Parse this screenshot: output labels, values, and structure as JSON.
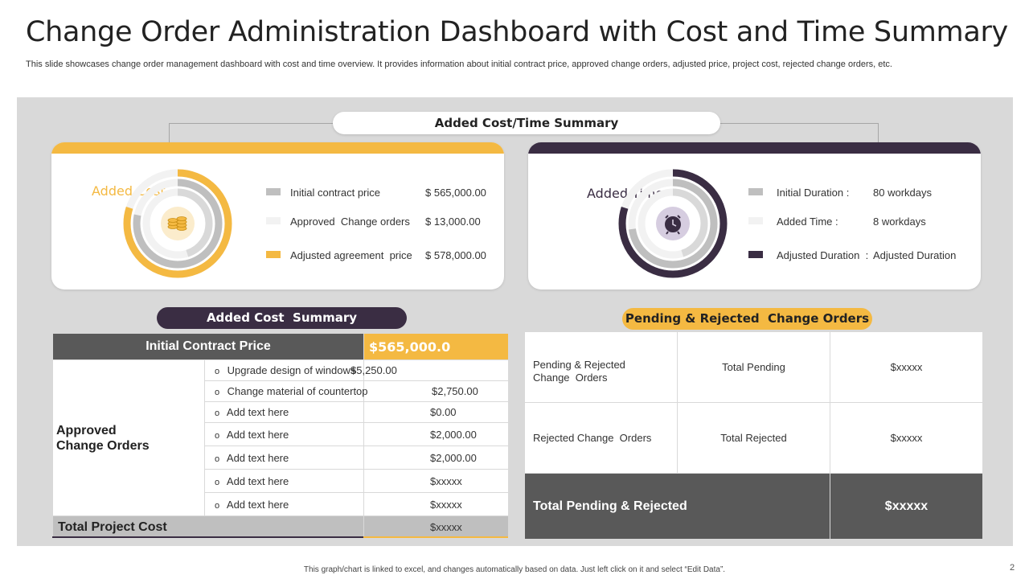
{
  "page": {
    "title": "Change Order Administration Dashboard with Cost and Time Summary",
    "subtitle": "This slide showcases change order management dashboard with cost and time overview. It provides information about initial contract price, approved change orders, adjusted price, project cost, rejected change orders, etc.",
    "footer": "This graph/chart is linked to excel, and changes automatically based on data. Just left click on it and select “Edit Data”.",
    "page_number": "2"
  },
  "colors": {
    "gold": "#f4b942",
    "dark_purple": "#3a2d43",
    "gray": "#bfbfbf",
    "light": "#f2f2f2",
    "lavender": "#d6cde0",
    "dark_gray": "#595959"
  },
  "summary": {
    "header": "Added Cost/Time Summary",
    "cost_card": {
      "heading": "Added Cost",
      "icon": "coins-icon",
      "legend": [
        {
          "label": "Initial contract price",
          "value": "$ 565,000.00",
          "color": "#bfbfbf"
        },
        {
          "label": "Approved  Change orders",
          "value": "$ 13,000.00",
          "color": "#f2f2f2"
        },
        {
          "label": "Adjusted agreement  price",
          "value": "$ 578,000.00",
          "color": "#f4b942"
        }
      ],
      "chart_data": {
        "type": "donut",
        "series": [
          {
            "name": "Initial contract price",
            "value": 565000
          },
          {
            "name": "Approved Change orders",
            "value": 13000
          },
          {
            "name": "Adjusted agreement price",
            "value": 578000
          }
        ],
        "max": 578000
      }
    },
    "time_card": {
      "heading": "Added Time",
      "icon": "alarm-clock-icon",
      "legend": [
        {
          "label": "Initial Duration :",
          "value": "80 workdays",
          "color": "#bfbfbf"
        },
        {
          "label": "Added Time :",
          "value": "8 workdays",
          "color": "#f2f2f2"
        },
        {
          "label": "Adjusted Duration  :",
          "value": "Adjusted Duration",
          "color": "#3a2d43"
        }
      ],
      "chart_data": {
        "type": "donut",
        "series": [
          {
            "name": "Initial Duration",
            "value": 80
          },
          {
            "name": "Added Time",
            "value": 8
          },
          {
            "name": "Adjusted Duration",
            "value": 88
          }
        ],
        "max": 88
      }
    }
  },
  "cost_summary": {
    "header": "Added Cost  Summary",
    "initial_label": "Initial Contract  Price",
    "initial_value": "$565,000.0",
    "approved_label": "Approved Change Orders",
    "items": [
      {
        "bullet": "o",
        "label": "Upgrade  design of windows",
        "value": "$5,250.00"
      },
      {
        "bullet": "o",
        "label": "Change  material of countertop",
        "value": "$2,750.00"
      },
      {
        "bullet": "o",
        "label": "Add text here",
        "value": "$0.00"
      },
      {
        "bullet": "o",
        "label": "Add text here",
        "value": "$2,000.00"
      },
      {
        "bullet": "o",
        "label": "Add text here",
        "value": "$2,000.00"
      },
      {
        "bullet": "o",
        "label": "Add text here",
        "value": "$xxxxx"
      },
      {
        "bullet": "o",
        "label": "Add text here",
        "value": "$xxxxx"
      }
    ],
    "total_label": "Total Project Cost",
    "total_value": "$xxxxx"
  },
  "pending": {
    "header": "Pending & Rejected  Change Orders",
    "rows": [
      {
        "label": "Pending & Rejected Change  Orders",
        "metric": "Total Pending",
        "value": "$xxxxx"
      },
      {
        "label": "Rejected Change  Orders",
        "metric": "Total Rejected",
        "value": "$xxxxx"
      }
    ],
    "total_label": "Total Pending & Rejected",
    "total_value": "$xxxxx"
  }
}
